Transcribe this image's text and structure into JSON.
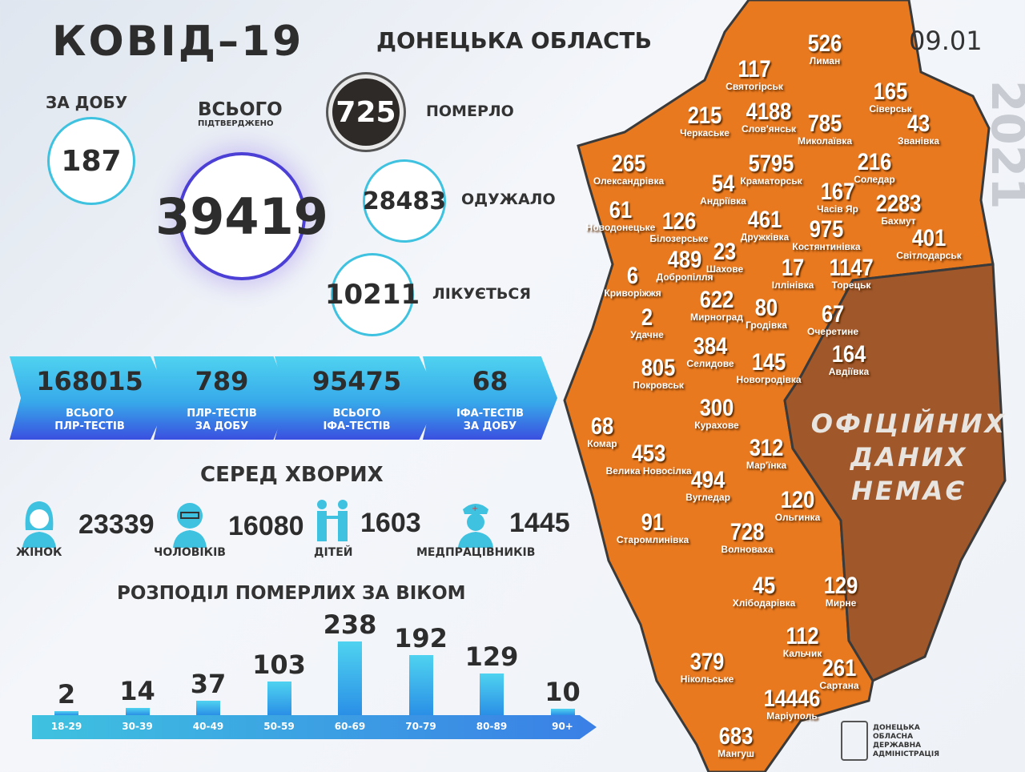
{
  "header": {
    "title": "КОВІД–19",
    "region": "ДОНЕЦЬКА ОБЛАСТЬ",
    "date": "09.01",
    "year": "2021"
  },
  "stats": {
    "daily": {
      "label": "ЗА ДОБУ",
      "value": "187"
    },
    "total": {
      "label": "ВСЬОГО",
      "sublabel": "ПІДТВЕРДЖЕНО",
      "value": "39419"
    },
    "died": {
      "label": "ПОМЕРЛО",
      "value": "725"
    },
    "recovered": {
      "label": "ОДУЖАЛО",
      "value": "28483"
    },
    "treated": {
      "label": "ЛІКУЄТЬСЯ",
      "value": "10211"
    }
  },
  "tests": [
    {
      "value": "168015",
      "l1": "ВСЬОГО",
      "l2": "ПЛР-ТЕСТІВ"
    },
    {
      "value": "789",
      "l1": "ПЛР-ТЕСТІВ",
      "l2": "ЗА ДОБУ"
    },
    {
      "value": "95475",
      "l1": "ВСЬОГО",
      "l2": "ІФА-ТЕСТІВ"
    },
    {
      "value": "68",
      "l1": "ІФА-ТЕСТІВ",
      "l2": "ЗА ДОБУ"
    }
  ],
  "patients": {
    "title": "СЕРЕД ХВОРИХ",
    "groups": [
      {
        "icon": "woman-icon",
        "value": "23339",
        "label": "ЖІНОК"
      },
      {
        "icon": "man-icon",
        "value": "16080",
        "label": "ЧОЛОВІКІВ"
      },
      {
        "icon": "children-icon",
        "value": "1603",
        "label": "ДІТЕЙ"
      },
      {
        "icon": "nurse-icon",
        "value": "1445",
        "label": "МЕДПРАЦІВНИКІВ"
      }
    ]
  },
  "chart_data": {
    "type": "bar",
    "title": "РОЗПОДІЛ ПОМЕРЛИХ ЗА ВІКОМ",
    "categories": [
      "18-29",
      "30-39",
      "40-49",
      "50-59",
      "60-69",
      "70-79",
      "80-89",
      "90+"
    ],
    "values": [
      2,
      14,
      37,
      103,
      238,
      192,
      129,
      10
    ],
    "bar_color": "#2fa8ea"
  },
  "map": {
    "no_data": [
      "ОФІЦІЙНИХ",
      "ДАНИХ",
      "НЕМАЄ"
    ],
    "colors": {
      "district": "#e8791f",
      "no_data": "#a0572a"
    },
    "districts": [
      {
        "v": "526",
        "n": "Лиман"
      },
      {
        "v": "117",
        "n": "Святогірськ"
      },
      {
        "v": "165",
        "n": "Сіверськ"
      },
      {
        "v": "215",
        "n": "Черкаське"
      },
      {
        "v": "4188",
        "n": "Слов'янськ"
      },
      {
        "v": "785",
        "n": "Миколаївка"
      },
      {
        "v": "43",
        "n": "Званівка"
      },
      {
        "v": "265",
        "n": "Олександрівка"
      },
      {
        "v": "5795",
        "n": "Краматорськ"
      },
      {
        "v": "216",
        "n": "Соледар"
      },
      {
        "v": "54",
        "n": "Андріївка"
      },
      {
        "v": "167",
        "n": "Часів Яр"
      },
      {
        "v": "2283",
        "n": "Бахмут"
      },
      {
        "v": "61",
        "n": "Новодонецьке"
      },
      {
        "v": "126",
        "n": "Білозерське"
      },
      {
        "v": "461",
        "n": "Дружківка"
      },
      {
        "v": "975",
        "n": "Костянтинівка"
      },
      {
        "v": "401",
        "n": "Світлодарськ"
      },
      {
        "v": "489",
        "n": "Добропілля"
      },
      {
        "v": "23",
        "n": "Шахове"
      },
      {
        "v": "6",
        "n": "Криворіжжя"
      },
      {
        "v": "17",
        "n": "Іллінівка"
      },
      {
        "v": "1147",
        "n": "Торецьк"
      },
      {
        "v": "622",
        "n": "Мирноград"
      },
      {
        "v": "80",
        "n": "Гродівка"
      },
      {
        "v": "67",
        "n": "Очеретине"
      },
      {
        "v": "2",
        "n": "Удачне"
      },
      {
        "v": "384",
        "n": "Селидове"
      },
      {
        "v": "145",
        "n": "Новогродівка"
      },
      {
        "v": "164",
        "n": "Авдіївка"
      },
      {
        "v": "805",
        "n": "Покровськ"
      },
      {
        "v": "300",
        "n": "Курахове"
      },
      {
        "v": "68",
        "n": "Комар"
      },
      {
        "v": "312",
        "n": "Мар'їнка"
      },
      {
        "v": "453",
        "n": "Велика Новосілка"
      },
      {
        "v": "494",
        "n": "Вугледар"
      },
      {
        "v": "120",
        "n": "Ольгинка"
      },
      {
        "v": "91",
        "n": "Старомлинівка"
      },
      {
        "v": "728",
        "n": "Волноваха"
      },
      {
        "v": "45",
        "n": "Хлібодарівка"
      },
      {
        "v": "129",
        "n": "Мирне"
      },
      {
        "v": "112",
        "n": "Кальчик"
      },
      {
        "v": "379",
        "n": "Нікольське"
      },
      {
        "v": "261",
        "n": "Сартана"
      },
      {
        "v": "14446",
        "n": "Маріуполь"
      },
      {
        "v": "683",
        "n": "Мангуш"
      }
    ]
  },
  "logo": {
    "lines": [
      "ДОНЕЦЬКА",
      "ОБЛАСНА",
      "ДЕРЖАВНА",
      "АДМІНІСТРАЦІЯ"
    ]
  }
}
